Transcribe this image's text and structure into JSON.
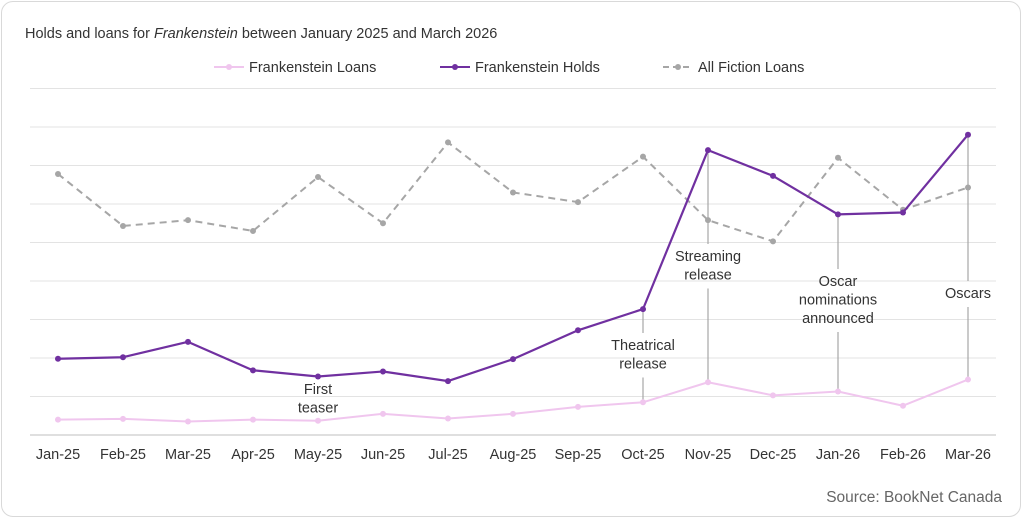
{
  "chart_data": {
    "type": "line",
    "title_parts": [
      "Holds and loans for ",
      "Frankenstein",
      " between January 2025 and March 2026"
    ],
    "categories": [
      "Jan-25",
      "Feb-25",
      "Mar-25",
      "Apr-25",
      "May-25",
      "Jun-25",
      "Jul-25",
      "Aug-25",
      "Sep-25",
      "Oct-25",
      "Nov-25",
      "Dec-25",
      "Jan-26",
      "Feb-26",
      "Mar-26"
    ],
    "ylim": [
      0,
      9
    ],
    "grid": true,
    "legend_position": "top-center",
    "y_tick_labels_shown": false,
    "series": [
      {
        "name": "Frankenstein Loans",
        "color": "#f0c6ee",
        "dashed": false,
        "values": [
          0.4,
          0.42,
          0.35,
          0.4,
          0.37,
          0.55,
          0.43,
          0.55,
          0.73,
          0.85,
          1.37,
          1.03,
          1.13,
          0.76,
          1.44
        ]
      },
      {
        "name": "Frankenstein Holds",
        "color": "#7030a0",
        "dashed": false,
        "values": [
          1.98,
          2.02,
          2.42,
          1.68,
          1.52,
          1.65,
          1.4,
          1.97,
          2.72,
          3.27,
          7.4,
          6.73,
          5.73,
          5.78,
          7.8
        ]
      },
      {
        "name": "All Fiction Loans",
        "color": "#a6a6a6",
        "dashed": true,
        "values": [
          6.78,
          5.43,
          5.58,
          5.3,
          6.7,
          5.5,
          7.6,
          6.3,
          6.05,
          7.23,
          5.58,
          5.03,
          7.2,
          5.85,
          6.43
        ]
      }
    ],
    "annotations": [
      {
        "category": "May-25",
        "lines": [
          "First",
          "teaser"
        ]
      },
      {
        "category": "Oct-25",
        "lines": [
          "Theatrical",
          "release"
        ]
      },
      {
        "category": "Nov-25",
        "lines": [
          "Streaming",
          "release"
        ]
      },
      {
        "category": "Jan-26",
        "lines": [
          "Oscar",
          "nominations",
          "announced"
        ]
      },
      {
        "category": "Mar-26",
        "lines": [
          "Oscars"
        ]
      }
    ],
    "source": "Source: BookNet Canada"
  }
}
